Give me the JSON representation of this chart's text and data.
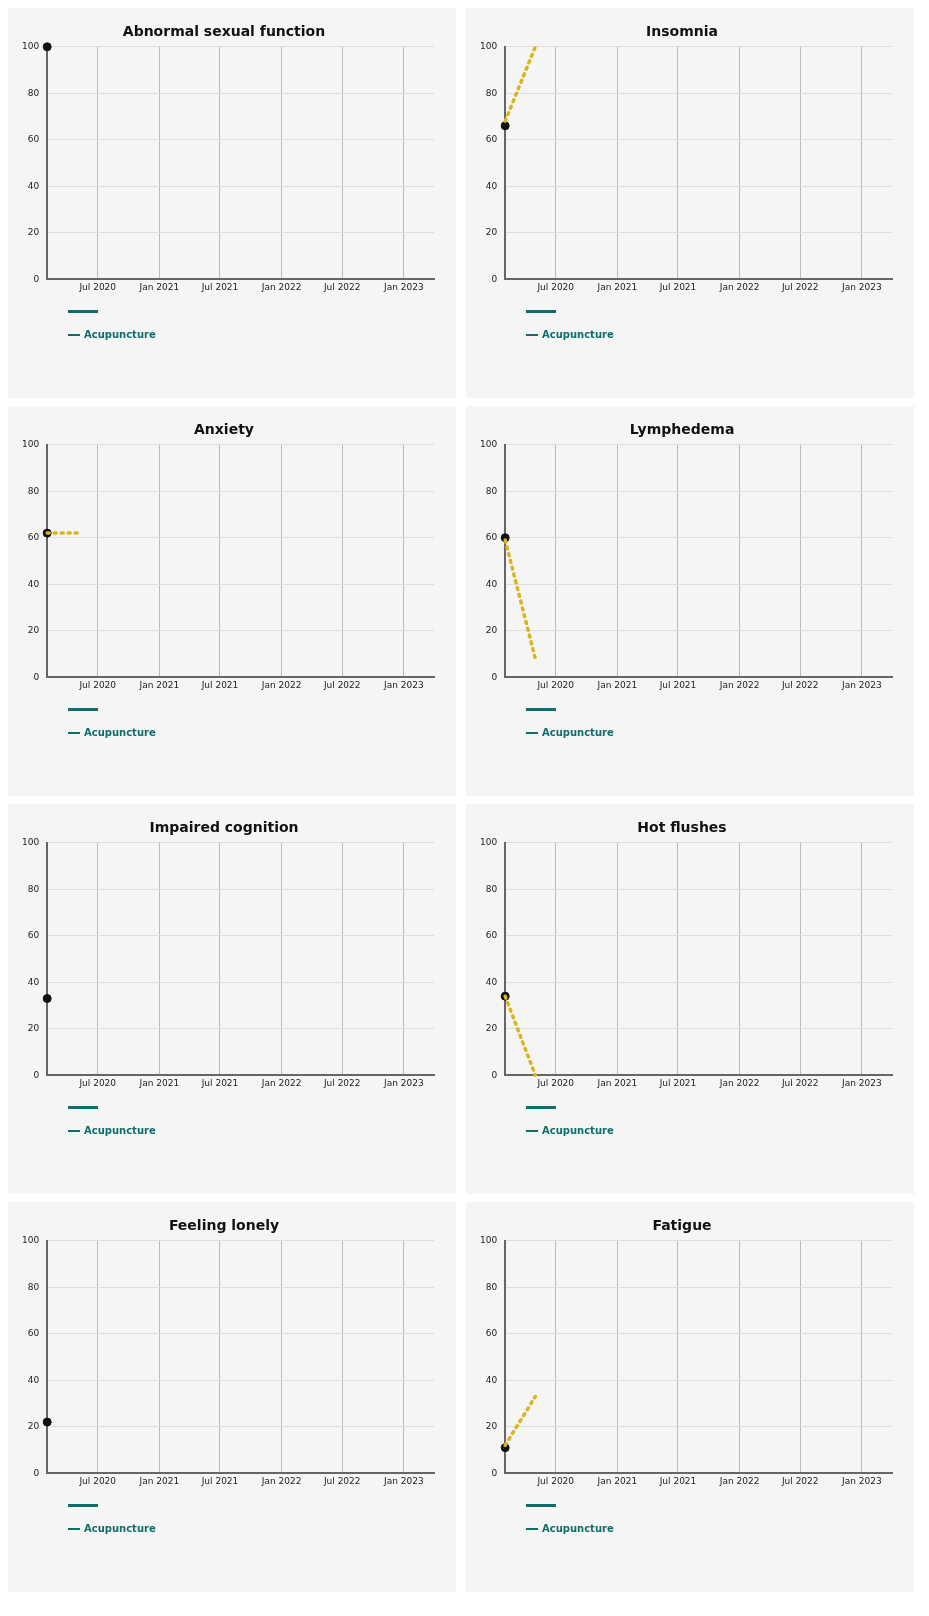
{
  "chart_data": [
    {
      "type": "line",
      "title": "Abnormal sexual function",
      "xlim": [
        "2020-02-01",
        "2023-04-01"
      ],
      "xticks": [
        {
          "value": "2020-07-01",
          "label": "Jul 2020"
        },
        {
          "value": "2021-01-01",
          "label": "Jan 2021"
        },
        {
          "value": "2021-07-01",
          "label": "Jul 2021"
        },
        {
          "value": "2022-01-01",
          "label": "Jan 2022"
        },
        {
          "value": "2022-07-01",
          "label": "Jul 2022"
        },
        {
          "value": "2023-01-01",
          "label": "Jan 2023"
        }
      ],
      "ylim": [
        0,
        100
      ],
      "yticks": [
        0,
        20,
        40,
        60,
        80,
        100
      ],
      "grid": true,
      "legend": "bottom",
      "series": [
        {
          "name": "Acupuncture",
          "type": "scatter",
          "color": "#0e6e6a",
          "colors": [
            "#111111"
          ],
          "marker": "circle",
          "x": [
            "2020-02-01"
          ],
          "values": [
            100
          ]
        }
      ]
    },
    {
      "type": "line",
      "title": "Insomnia",
      "xlim": [
        "2020-02-01",
        "2023-04-01"
      ],
      "xticks": [
        {
          "value": "2020-07-01",
          "label": "Jul 2020"
        },
        {
          "value": "2021-01-01",
          "label": "Jan 2021"
        },
        {
          "value": "2021-07-01",
          "label": "Jul 2021"
        },
        {
          "value": "2022-01-01",
          "label": "Jan 2022"
        },
        {
          "value": "2022-07-01",
          "label": "Jul 2022"
        },
        {
          "value": "2023-01-01",
          "label": "Jan 2023"
        }
      ],
      "ylim": [
        0,
        100
      ],
      "yticks": [
        0,
        20,
        40,
        60,
        80,
        100
      ],
      "grid": true,
      "legend": "bottom",
      "series": [
        {
          "type": "line",
          "color": "#d9b520",
          "line_style": "dotted",
          "marker": "none",
          "x": [
            "2020-02-01",
            "2020-05-01"
          ],
          "values": [
            68,
            100
          ]
        },
        {
          "name": "Acupuncture",
          "type": "scatter",
          "color": "#0e6e6a",
          "colors": [
            "#111111"
          ],
          "marker": "circle",
          "x": [
            "2020-02-01"
          ],
          "values": [
            66
          ]
        }
      ]
    },
    {
      "type": "line",
      "title": "Anxiety",
      "xlim": [
        "2020-02-01",
        "2023-04-01"
      ],
      "xticks": [
        {
          "value": "2020-07-01",
          "label": "Jul 2020"
        },
        {
          "value": "2021-01-01",
          "label": "Jan 2021"
        },
        {
          "value": "2021-07-01",
          "label": "Jul 2021"
        },
        {
          "value": "2022-01-01",
          "label": "Jan 2022"
        },
        {
          "value": "2022-07-01",
          "label": "Jul 2022"
        },
        {
          "value": "2023-01-01",
          "label": "Jan 2023"
        }
      ],
      "ylim": [
        0,
        100
      ],
      "yticks": [
        0,
        20,
        40,
        60,
        80,
        100
      ],
      "grid": true,
      "legend": "bottom",
      "series": [
        {
          "type": "line",
          "color": "#d9b520",
          "line_style": "dotted",
          "marker": "none",
          "x": [
            "2020-02-01",
            "2020-05-01"
          ],
          "values": [
            62,
            62
          ]
        },
        {
          "name": "Acupuncture",
          "type": "scatter",
          "color": "#0e6e6a",
          "colors": [
            "#111111"
          ],
          "marker": "circle",
          "x": [
            "2020-02-01"
          ],
          "values": [
            62
          ]
        }
      ]
    },
    {
      "type": "line",
      "title": "Lymphedema",
      "xlim": [
        "2020-02-01",
        "2023-04-01"
      ],
      "xticks": [
        {
          "value": "2020-07-01",
          "label": "Jul 2020"
        },
        {
          "value": "2021-01-01",
          "label": "Jan 2021"
        },
        {
          "value": "2021-07-01",
          "label": "Jul 2021"
        },
        {
          "value": "2022-01-01",
          "label": "Jan 2022"
        },
        {
          "value": "2022-07-01",
          "label": "Jul 2022"
        },
        {
          "value": "2023-01-01",
          "label": "Jan 2023"
        }
      ],
      "ylim": [
        0,
        100
      ],
      "yticks": [
        0,
        20,
        40,
        60,
        80,
        100
      ],
      "grid": true,
      "legend": "bottom",
      "series": [
        {
          "type": "line",
          "color": "#d9b520",
          "line_style": "dotted",
          "marker": "none",
          "x": [
            "2020-02-01",
            "2020-05-01"
          ],
          "values": [
            59,
            8
          ]
        },
        {
          "name": "Acupuncture",
          "type": "scatter",
          "color": "#0e6e6a",
          "colors": [
            "#111111"
          ],
          "marker": "circle",
          "x": [
            "2020-02-01"
          ],
          "values": [
            60
          ]
        }
      ]
    },
    {
      "type": "line",
      "title": "Impaired cognition",
      "xlim": [
        "2020-02-01",
        "2023-04-01"
      ],
      "xticks": [
        {
          "value": "2020-07-01",
          "label": "Jul 2020"
        },
        {
          "value": "2021-01-01",
          "label": "Jan 2021"
        },
        {
          "value": "2021-07-01",
          "label": "Jul 2021"
        },
        {
          "value": "2022-01-01",
          "label": "Jan 2022"
        },
        {
          "value": "2022-07-01",
          "label": "Jul 2022"
        },
        {
          "value": "2023-01-01",
          "label": "Jan 2023"
        }
      ],
      "ylim": [
        0,
        100
      ],
      "yticks": [
        0,
        20,
        40,
        60,
        80,
        100
      ],
      "grid": true,
      "legend": "bottom",
      "series": [
        {
          "name": "Acupuncture",
          "type": "scatter",
          "color": "#0e6e6a",
          "colors": [
            "#111111"
          ],
          "marker": "circle",
          "x": [
            "2020-02-01"
          ],
          "values": [
            33
          ]
        }
      ]
    },
    {
      "type": "line",
      "title": "Hot flushes",
      "xlim": [
        "2020-02-01",
        "2023-04-01"
      ],
      "xticks": [
        {
          "value": "2020-07-01",
          "label": "Jul 2020"
        },
        {
          "value": "2021-01-01",
          "label": "Jan 2021"
        },
        {
          "value": "2021-07-01",
          "label": "Jul 2021"
        },
        {
          "value": "2022-01-01",
          "label": "Jan 2022"
        },
        {
          "value": "2022-07-01",
          "label": "Jul 2022"
        },
        {
          "value": "2023-01-01",
          "label": "Jan 2023"
        }
      ],
      "ylim": [
        0,
        100
      ],
      "yticks": [
        0,
        20,
        40,
        60,
        80,
        100
      ],
      "grid": true,
      "legend": "bottom",
      "series": [
        {
          "type": "line",
          "color": "#d9b520",
          "line_style": "dotted",
          "marker": "none",
          "x": [
            "2020-02-01",
            "2020-05-01"
          ],
          "values": [
            34,
            0
          ]
        },
        {
          "name": "Acupuncture",
          "type": "scatter",
          "color": "#0e6e6a",
          "colors": [
            "#111111"
          ],
          "marker": "circle",
          "x": [
            "2020-02-01"
          ],
          "values": [
            34
          ]
        }
      ]
    },
    {
      "type": "line",
      "title": "Feeling lonely",
      "xlim": [
        "2020-02-01",
        "2023-04-01"
      ],
      "xticks": [
        {
          "value": "2020-07-01",
          "label": "Jul 2020"
        },
        {
          "value": "2021-01-01",
          "label": "Jan 2021"
        },
        {
          "value": "2021-07-01",
          "label": "Jul 2021"
        },
        {
          "value": "2022-01-01",
          "label": "Jan 2022"
        },
        {
          "value": "2022-07-01",
          "label": "Jul 2022"
        },
        {
          "value": "2023-01-01",
          "label": "Jan 2023"
        }
      ],
      "ylim": [
        0,
        100
      ],
      "yticks": [
        0,
        20,
        40,
        60,
        80,
        100
      ],
      "grid": true,
      "legend": "bottom",
      "series": [
        {
          "name": "Acupuncture",
          "type": "scatter",
          "color": "#0e6e6a",
          "colors": [
            "#111111"
          ],
          "marker": "circle",
          "x": [
            "2020-02-01"
          ],
          "values": [
            22
          ]
        }
      ]
    },
    {
      "type": "line",
      "title": "Fatigue",
      "xlim": [
        "2020-02-01",
        "2023-04-01"
      ],
      "xticks": [
        {
          "value": "2020-07-01",
          "label": "Jul 2020"
        },
        {
          "value": "2021-01-01",
          "label": "Jan 2021"
        },
        {
          "value": "2021-07-01",
          "label": "Jul 2021"
        },
        {
          "value": "2022-01-01",
          "label": "Jan 2022"
        },
        {
          "value": "2022-07-01",
          "label": "Jul 2022"
        },
        {
          "value": "2023-01-01",
          "label": "Jan 2023"
        }
      ],
      "ylim": [
        0,
        100
      ],
      "yticks": [
        0,
        20,
        40,
        60,
        80,
        100
      ],
      "grid": true,
      "legend": "bottom",
      "series": [
        {
          "type": "line",
          "color": "#d9b520",
          "line_style": "dotted",
          "marker": "none",
          "x": [
            "2020-02-01",
            "2020-05-01"
          ],
          "values": [
            12,
            33
          ]
        },
        {
          "name": "Acupuncture",
          "type": "scatter",
          "color": "#0e6e6a",
          "colors": [
            "#111111"
          ],
          "marker": "circle",
          "x": [
            "2020-02-01"
          ],
          "values": [
            11
          ]
        }
      ]
    }
  ]
}
